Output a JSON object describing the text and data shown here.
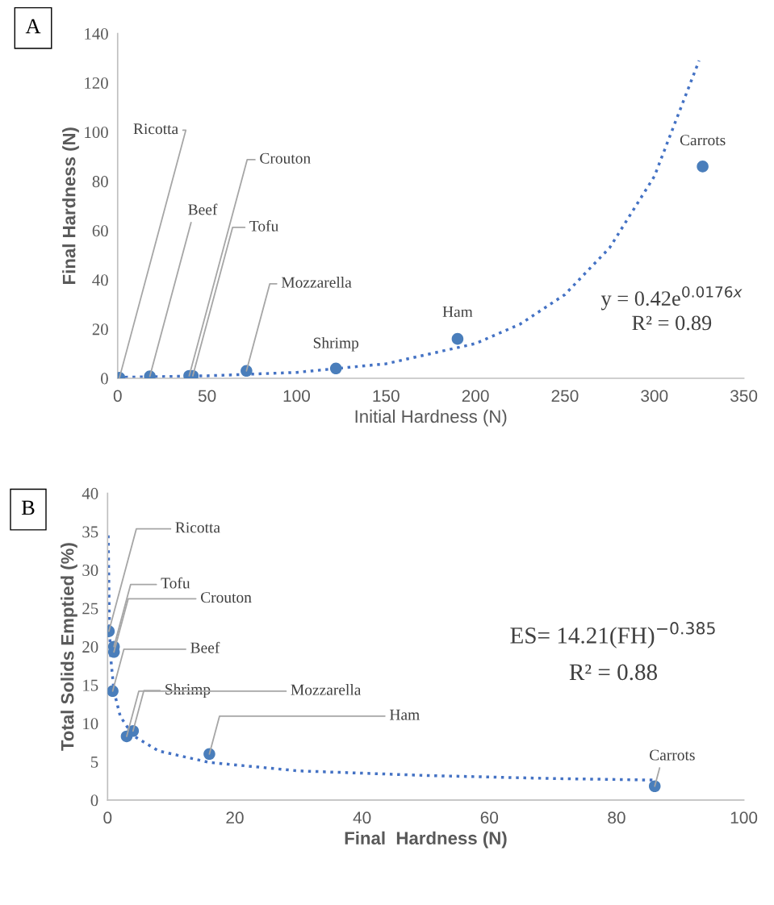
{
  "chart_data": [
    {
      "type": "scatter",
      "xlabel": "Initial Hardness (N)",
      "ylabel": "Final Hardness (N)",
      "xlim": [
        0,
        350
      ],
      "ylim": [
        0,
        140
      ],
      "xticks": [
        0,
        50,
        100,
        150,
        200,
        250,
        300,
        350
      ],
      "yticks": [
        0,
        20,
        40,
        60,
        80,
        100,
        120,
        140
      ],
      "grid": false,
      "legend": false,
      "series": [
        {
          "marker": "circle",
          "color": "#4a7ebb",
          "x": [
            1,
            18,
            40,
            42,
            72,
            122,
            190,
            327
          ],
          "values": [
            0.2,
            0.8,
            1,
            1,
            3,
            4,
            16,
            86
          ]
        },
        {
          "type": "line",
          "line_style": "dotted",
          "marker": "none",
          "color": "#4472c4",
          "x": [
            0,
            50,
            100,
            150,
            200,
            225,
            250,
            275,
            300,
            325
          ],
          "values": [
            0.4,
            1.0,
            2.4,
            5.9,
            14.1,
            22,
            34,
            53,
            82,
            129
          ]
        }
      ],
      "annotations": [
        "A",
        "y = 0.42e$^{0.0176x}$",
        "R² = 0.89",
        {
          "text": "Ricotta",
          "x": 1,
          "y": 0.2
        },
        {
          "text": "Beef",
          "x": 18,
          "y": 0.8
        },
        {
          "text": "Crouton",
          "x": 40,
          "y": 1
        },
        {
          "text": "Tofu",
          "x": 42,
          "y": 1
        },
        {
          "text": "Mozzarella",
          "x": 72,
          "y": 3
        },
        {
          "text": "Shrimp",
          "x": 122,
          "y": 4
        },
        {
          "text": "Ham",
          "x": 190,
          "y": 16
        },
        {
          "text": "Carrots",
          "x": 327,
          "y": 86
        }
      ]
    },
    {
      "type": "scatter",
      "xlabel": "Final  Hardness (N)",
      "ylabel": "Total Solids Emptied (%)",
      "xlim": [
        0,
        100
      ],
      "ylim": [
        0,
        40
      ],
      "xticks": [
        0,
        20,
        40,
        60,
        80,
        100
      ],
      "yticks": [
        0,
        5,
        10,
        15,
        20,
        25,
        30,
        35,
        40
      ],
      "grid": false,
      "legend": false,
      "series": [
        {
          "marker": "circle",
          "color": "#4a7ebb",
          "x": [
            0.2,
            1,
            1,
            0.8,
            4,
            3,
            16,
            86
          ],
          "values": [
            22,
            20,
            19.3,
            14.2,
            9,
            8.3,
            6,
            1.8
          ]
        },
        {
          "type": "line",
          "line_style": "dotted",
          "marker": "none",
          "color": "#4472c4",
          "x": [
            0.1,
            0.3,
            0.5,
            1,
            2,
            4,
            8,
            16,
            30,
            50,
            70,
            86
          ],
          "values": [
            34.5,
            22.2,
            18.5,
            14.2,
            10.9,
            8.4,
            6.4,
            4.9,
            3.8,
            3.2,
            2.8,
            2.6
          ]
        }
      ],
      "annotations": [
        "B",
        "ES= 14.21(FH)$^{−0.385}$",
        "R² = 0.88",
        {
          "text": "Ricotta",
          "x": 0.2,
          "y": 22
        },
        {
          "text": "Tofu",
          "x": 1,
          "y": 20
        },
        {
          "text": "Crouton",
          "x": 1,
          "y": 19.3
        },
        {
          "text": "Beef",
          "x": 0.8,
          "y": 14.2
        },
        {
          "text": "Shrimp",
          "x": 4,
          "y": 9
        },
        {
          "text": "Mozzarella",
          "x": 3,
          "y": 8.3
        },
        {
          "text": "Ham",
          "x": 16,
          "y": 6
        },
        {
          "text": "Carrots",
          "x": 86,
          "y": 1.8
        }
      ]
    }
  ]
}
